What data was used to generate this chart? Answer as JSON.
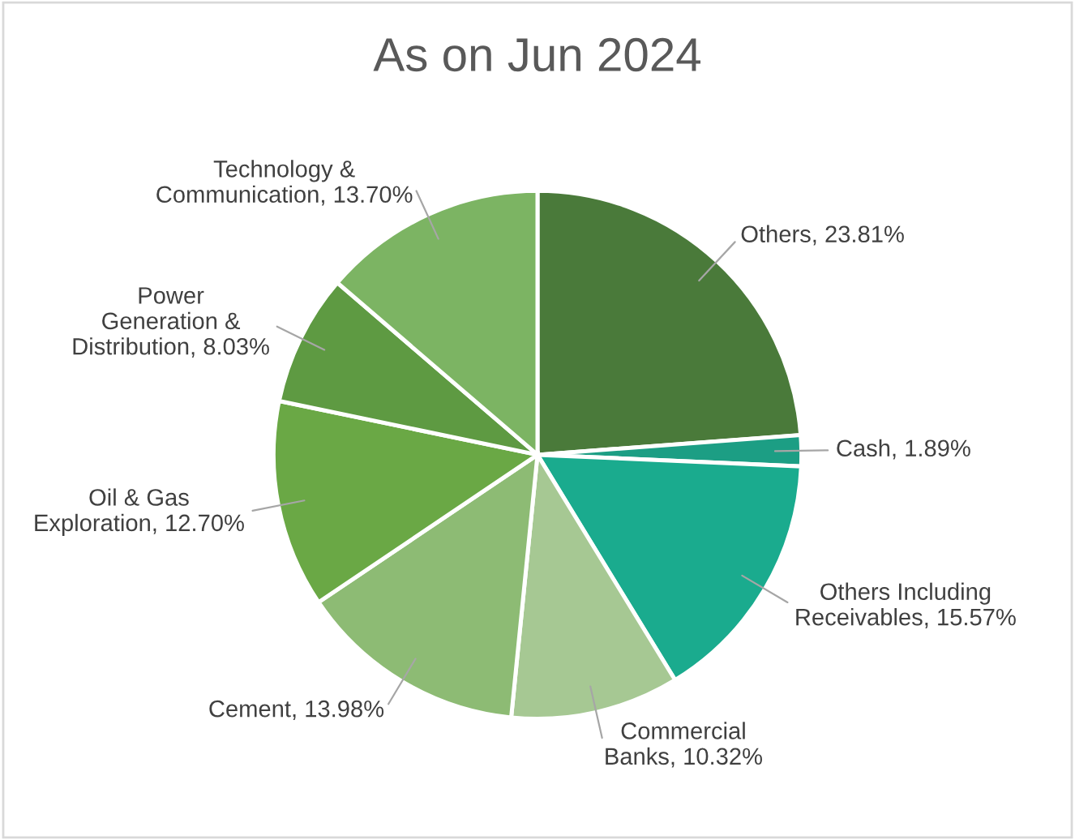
{
  "chart_data": {
    "type": "pie",
    "title": "As on Jun 2024",
    "categories": [
      "Others",
      "Cash",
      "Others Including\nReceivables",
      "Commercial\nBanks",
      "Cement",
      "Oil & Gas\nExploration",
      "Power\nGeneration &\nDistribution",
      "Technology &\nCommunication"
    ],
    "values": [
      23.81,
      1.89,
      15.57,
      10.32,
      13.98,
      12.7,
      8.03,
      13.7
    ],
    "value_labels": [
      "23.81%",
      "1.89%",
      "15.57%",
      "10.32%",
      "13.98%",
      "12.70%",
      "8.03%",
      "13.70%"
    ],
    "colors": [
      "#4a7a3a",
      "#1c9e84",
      "#1aab8e",
      "#a6c893",
      "#8dbb74",
      "#6aa845",
      "#5e9a42",
      "#7cb463"
    ],
    "legend": false
  }
}
